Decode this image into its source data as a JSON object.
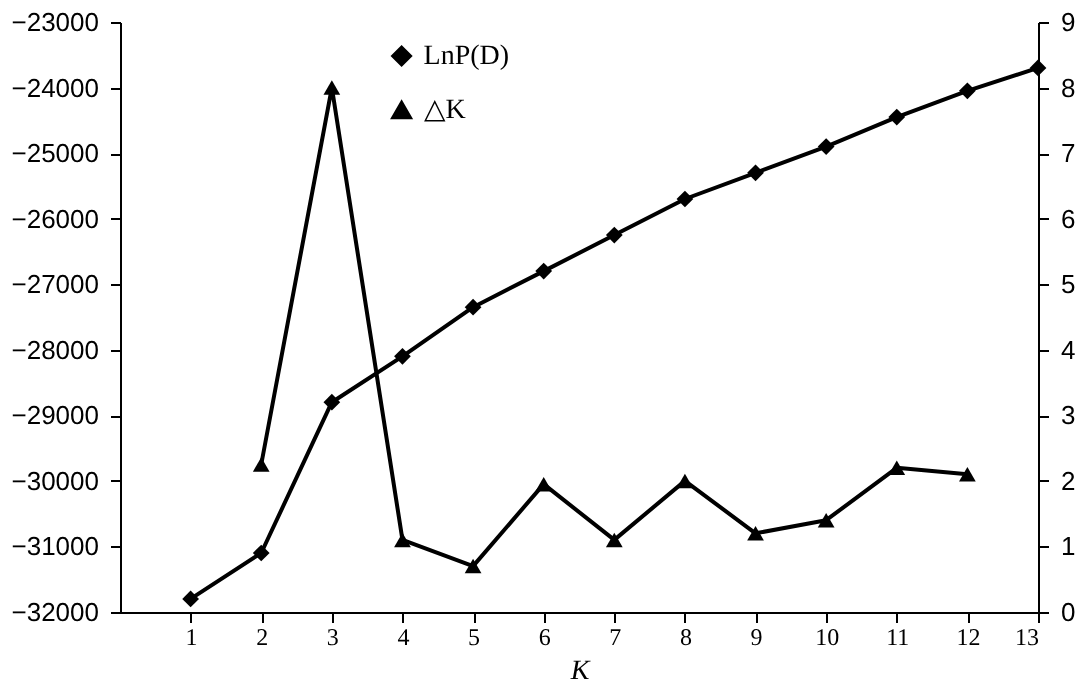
{
  "chart_data": {
    "type": "line",
    "xlabel": "K",
    "x": [
      1,
      2,
      3,
      4,
      5,
      6,
      7,
      8,
      9,
      10,
      11,
      12,
      13
    ],
    "series": [
      {
        "name": "LnP(D)",
        "color": "#000000",
        "marker": "diamond",
        "values": [
          -31800,
          -31100,
          -28800,
          -28100,
          -27350,
          -26800,
          -26250,
          -25700,
          -25300,
          -24900,
          -24450,
          -24050,
          -23700
        ]
      },
      {
        "name": "△K",
        "color": "#000000",
        "marker": "triangle",
        "axis": "y2",
        "values": [
          null,
          2.25,
          8.0,
          1.1,
          0.7,
          1.95,
          1.1,
          2.0,
          1.2,
          1.4,
          2.2,
          2.1,
          null
        ]
      }
    ],
    "xlim": [
      0,
      13
    ],
    "xticks": [
      1,
      2,
      3,
      4,
      5,
      6,
      7,
      8,
      9,
      10,
      11,
      12,
      13
    ],
    "ylim": [
      -32000,
      -23000
    ],
    "yticks": [
      -32000,
      -31000,
      -30000,
      -29000,
      -28000,
      -27000,
      -26000,
      -25000,
      -24000,
      -23000
    ],
    "y2lim": [
      0,
      9
    ],
    "y2ticks": [
      0,
      1,
      2,
      3,
      4,
      5,
      6,
      7,
      8,
      9
    ],
    "grid": false,
    "legend": "top",
    "line_style": "solid"
  }
}
